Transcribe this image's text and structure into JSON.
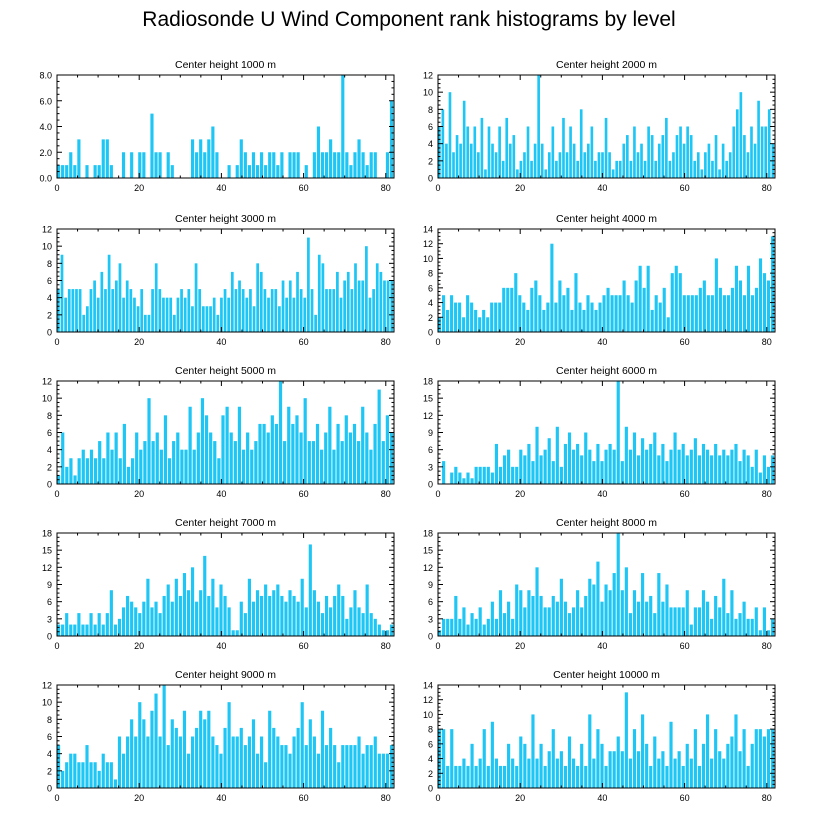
{
  "title": "Radiosonde U Wind Component rank histograms by level",
  "colors": {
    "bar": "#1ec6f5",
    "axis": "#000000",
    "background": "#ffffff"
  },
  "chart_data": [
    {
      "type": "bar",
      "title": "Center height 1000 m",
      "xlim": [
        0,
        82
      ],
      "ylim": [
        0,
        8
      ],
      "xticks": [
        0,
        20,
        40,
        60,
        80
      ],
      "xtick_labels": [
        "0",
        "20",
        "40",
        "60",
        "80"
      ],
      "yticks": [
        0,
        2,
        4,
        6,
        8
      ],
      "ytick_labels": [
        "0.0",
        "2.0",
        "4.0",
        "6.0",
        "8.0"
      ],
      "values": [
        1,
        1,
        1,
        2,
        1,
        3,
        0,
        1,
        0,
        1,
        1,
        3,
        3,
        1,
        0,
        0,
        2,
        0,
        2,
        0,
        2,
        2,
        0,
        5,
        2,
        2,
        0,
        2,
        1,
        0,
        0,
        0,
        0,
        3,
        2,
        3,
        2,
        3,
        4,
        2,
        0,
        0,
        1,
        0,
        1,
        3,
        2,
        1,
        2,
        1,
        2,
        1,
        2,
        2,
        1,
        2,
        0,
        2,
        2,
        2,
        0,
        1,
        0,
        2,
        4,
        2,
        2,
        3,
        2,
        2,
        8,
        2,
        1,
        2,
        3,
        2,
        1,
        2,
        2,
        0,
        0,
        2,
        6
      ]
    },
    {
      "type": "bar",
      "title": "Center height 2000 m",
      "xlim": [
        0,
        82
      ],
      "ylim": [
        0,
        12
      ],
      "xticks": [
        0,
        20,
        40,
        60,
        80
      ],
      "xtick_labels": [
        "0",
        "20",
        "40",
        "60",
        "80"
      ],
      "yticks": [
        0,
        2,
        4,
        6,
        8,
        10,
        12
      ],
      "ytick_labels": [
        "0",
        "2",
        "4",
        "6",
        "8",
        "10",
        "12"
      ],
      "values": [
        6,
        8,
        4,
        10,
        3,
        5,
        4,
        9,
        6,
        4,
        6,
        3,
        7,
        1,
        6,
        4,
        3,
        6,
        2,
        7,
        4,
        5,
        1,
        2,
        3,
        6,
        2,
        4,
        12,
        4,
        1,
        3,
        6,
        2,
        3,
        7,
        3,
        6,
        4,
        2,
        8,
        3,
        4,
        6,
        2,
        3,
        3,
        7,
        3,
        1,
        2,
        2,
        4,
        5,
        2,
        6,
        3,
        4,
        2,
        6,
        5,
        2,
        4,
        5,
        7,
        2,
        3,
        5,
        6,
        4,
        6,
        5,
        2,
        3,
        1,
        3,
        4,
        2,
        5,
        1,
        4,
        2,
        3,
        6,
        8,
        10,
        5,
        3,
        6,
        4,
        9,
        6,
        6,
        8,
        4
      ]
    },
    {
      "type": "bar",
      "title": "Center height 3000 m",
      "xlim": [
        0,
        82
      ],
      "ylim": [
        0,
        12
      ],
      "xticks": [
        0,
        20,
        40,
        60,
        80
      ],
      "xtick_labels": [
        "0",
        "20",
        "40",
        "60",
        "80"
      ],
      "yticks": [
        0,
        2,
        4,
        6,
        8,
        10,
        12
      ],
      "ytick_labels": [
        "0",
        "2",
        "4",
        "6",
        "8",
        "10",
        "12"
      ],
      "values": [
        5,
        9,
        4,
        5,
        5,
        5,
        5,
        2,
        3,
        5,
        6,
        4,
        7,
        5,
        9,
        5,
        6,
        8,
        4,
        6,
        5,
        4,
        3,
        5,
        2,
        2,
        5,
        8,
        5,
        4,
        4,
        4,
        2,
        4,
        5,
        4,
        5,
        3,
        8,
        5,
        3,
        3,
        3,
        4,
        2,
        4,
        5,
        4,
        7,
        5,
        6,
        5,
        4,
        5,
        3,
        8,
        7,
        5,
        4,
        5,
        5,
        3,
        6,
        4,
        6,
        4,
        7,
        5,
        4,
        11,
        5,
        2,
        9,
        8,
        5,
        5,
        5,
        7,
        4,
        6,
        7,
        5,
        8,
        6,
        6,
        10,
        4,
        5,
        8,
        7,
        6,
        6,
        6
      ]
    },
    {
      "type": "bar",
      "title": "Center height 4000 m",
      "xlim": [
        0,
        82
      ],
      "ylim": [
        0,
        14
      ],
      "xticks": [
        0,
        20,
        40,
        60,
        80
      ],
      "xtick_labels": [
        "0",
        "20",
        "40",
        "60",
        "80"
      ],
      "yticks": [
        0,
        2,
        4,
        6,
        8,
        10,
        12,
        14
      ],
      "ytick_labels": [
        "0",
        "2",
        "4",
        "6",
        "8",
        "10",
        "12",
        "14"
      ],
      "values": [
        2,
        5,
        3,
        5,
        4,
        4,
        2,
        5,
        4,
        3,
        2,
        3,
        2,
        4,
        4,
        4,
        6,
        6,
        6,
        8,
        5,
        4,
        3,
        6,
        7,
        5,
        3,
        4,
        12,
        4,
        7,
        5,
        6,
        3,
        8,
        4,
        3,
        5,
        4,
        3,
        4,
        5,
        6,
        5,
        5,
        5,
        7,
        5,
        4,
        7,
        9,
        6,
        9,
        3,
        5,
        4,
        6,
        2,
        8,
        9,
        8,
        5,
        5,
        5,
        5,
        6,
        7,
        5,
        5,
        10,
        6,
        5,
        5,
        6,
        9,
        7,
        5,
        9,
        5,
        6,
        10,
        8,
        7,
        13
      ]
    },
    {
      "type": "bar",
      "title": "Center height 5000 m",
      "xlim": [
        0,
        82
      ],
      "ylim": [
        0,
        12
      ],
      "xticks": [
        0,
        20,
        40,
        60,
        80
      ],
      "xtick_labels": [
        "0",
        "20",
        "40",
        "60",
        "80"
      ],
      "yticks": [
        0,
        2,
        4,
        6,
        8,
        10,
        12
      ],
      "ytick_labels": [
        "0",
        "2",
        "4",
        "6",
        "8",
        "10",
        "12"
      ],
      "values": [
        1,
        6,
        2,
        3,
        1,
        3,
        4,
        3,
        4,
        3,
        5,
        3,
        6,
        4,
        6,
        3,
        7,
        2,
        3,
        6,
        4,
        5,
        10,
        5,
        6,
        4,
        8,
        3,
        5,
        6,
        4,
        4,
        9,
        4,
        6,
        10,
        8,
        6,
        5,
        3,
        8,
        9,
        6,
        5,
        9,
        4,
        6,
        4,
        5,
        7,
        7,
        6,
        8,
        7,
        12,
        5,
        9,
        7,
        8,
        6,
        10,
        5,
        5,
        7,
        4,
        6,
        9,
        4,
        7,
        5,
        8,
        6,
        7,
        5,
        9,
        6,
        4,
        7,
        11,
        5,
        8,
        6
      ]
    },
    {
      "type": "bar",
      "title": "Center height 6000 m",
      "xlim": [
        0,
        82
      ],
      "ylim": [
        0,
        18
      ],
      "xticks": [
        0,
        20,
        40,
        60,
        80
      ],
      "xtick_labels": [
        "0",
        "20",
        "40",
        "60",
        "80"
      ],
      "yticks": [
        0,
        3,
        6,
        9,
        12,
        15,
        18
      ],
      "ytick_labels": [
        "0",
        "3",
        "6",
        "9",
        "12",
        "15",
        "18"
      ],
      "values": [
        0,
        4,
        0,
        2,
        3,
        2,
        1,
        2,
        1,
        3,
        3,
        3,
        3,
        2,
        7,
        3,
        5,
        6,
        3,
        3,
        6,
        5,
        7,
        4,
        10,
        5,
        6,
        8,
        4,
        10,
        3,
        7,
        9,
        6,
        7,
        5,
        9,
        6,
        4,
        7,
        4,
        6,
        7,
        6,
        18,
        4,
        10,
        6,
        9,
        5,
        8,
        6,
        7,
        9,
        5,
        7,
        4,
        6,
        9,
        6,
        7,
        5,
        6,
        8,
        5,
        7,
        6,
        5,
        7,
        5,
        6,
        5,
        6,
        7,
        4,
        6,
        5,
        3,
        6,
        2,
        5,
        3,
        5
      ]
    },
    {
      "type": "bar",
      "title": "Center height 7000 m",
      "xlim": [
        0,
        82
      ],
      "ylim": [
        0,
        18
      ],
      "xticks": [
        0,
        20,
        40,
        60,
        80
      ],
      "xtick_labels": [
        "0",
        "20",
        "40",
        "60",
        "80"
      ],
      "yticks": [
        0,
        3,
        6,
        9,
        12,
        15,
        18
      ],
      "ytick_labels": [
        "0",
        "3",
        "6",
        "9",
        "12",
        "15",
        "18"
      ],
      "values": [
        2,
        2,
        4,
        2,
        2,
        4,
        2,
        2,
        4,
        2,
        4,
        2,
        4,
        8,
        2,
        3,
        5,
        7,
        6,
        5,
        4,
        6,
        10,
        5,
        6,
        4,
        7,
        9,
        6,
        10,
        7,
        11,
        8,
        12,
        6,
        8,
        14,
        7,
        10,
        5,
        9,
        7,
        5,
        1,
        1,
        6,
        4,
        10,
        6,
        8,
        7,
        9,
        7,
        8,
        9,
        7,
        6,
        8,
        7,
        6,
        10,
        5,
        16,
        8,
        6,
        4,
        7,
        5,
        7,
        9,
        7,
        3,
        5,
        8,
        5,
        4,
        9,
        4,
        3,
        2,
        1,
        1,
        2
      ]
    },
    {
      "type": "bar",
      "title": "Center height 8000 m",
      "xlim": [
        0,
        82
      ],
      "ylim": [
        0,
        18
      ],
      "xticks": [
        0,
        20,
        40,
        60,
        80
      ],
      "xtick_labels": [
        "0",
        "20",
        "40",
        "60",
        "80"
      ],
      "yticks": [
        0,
        3,
        6,
        9,
        12,
        15,
        18
      ],
      "ytick_labels": [
        "0",
        "3",
        "6",
        "9",
        "12",
        "15",
        "18"
      ],
      "values": [
        1,
        3,
        3,
        3,
        7,
        3,
        5,
        2,
        4,
        3,
        5,
        2,
        3,
        6,
        3,
        8,
        4,
        6,
        3,
        9,
        8,
        5,
        8,
        7,
        12,
        7,
        5,
        5,
        7,
        6,
        10,
        6,
        4,
        5,
        8,
        5,
        7,
        10,
        9,
        13,
        6,
        9,
        8,
        11,
        18,
        8,
        12,
        4,
        8,
        6,
        11,
        6,
        7,
        4,
        11,
        6,
        9,
        5,
        5,
        5,
        5,
        8,
        2,
        5,
        5,
        8,
        6,
        3,
        7,
        5,
        10,
        4,
        8,
        3,
        4,
        6,
        3,
        3,
        5,
        1,
        5,
        1,
        3
      ]
    },
    {
      "type": "bar",
      "title": "Center height 9000 m",
      "xlim": [
        0,
        82
      ],
      "ylim": [
        0,
        12
      ],
      "xticks": [
        0,
        20,
        40,
        60,
        80
      ],
      "xtick_labels": [
        "0",
        "20",
        "40",
        "60",
        "80"
      ],
      "yticks": [
        0,
        2,
        4,
        6,
        8,
        10,
        12
      ],
      "ytick_labels": [
        "0",
        "2",
        "4",
        "6",
        "8",
        "10",
        "12"
      ],
      "values": [
        5,
        2,
        3,
        4,
        4,
        3,
        3,
        5,
        3,
        3,
        2,
        4,
        3,
        3,
        1,
        6,
        4,
        6,
        8,
        6,
        10,
        8,
        6,
        9,
        11,
        6,
        12,
        5,
        8,
        7,
        6,
        9,
        4,
        6,
        7,
        9,
        8,
        9,
        6,
        5,
        4,
        7,
        10,
        6,
        6,
        7,
        5,
        6,
        8,
        4,
        6,
        3,
        9,
        7,
        6,
        5,
        5,
        4,
        6,
        7,
        10,
        5,
        8,
        6,
        4,
        9,
        5,
        7,
        5,
        3,
        5,
        5,
        5,
        5,
        6,
        4,
        5,
        5,
        6,
        4,
        4,
        4,
        5
      ]
    },
    {
      "type": "bar",
      "title": "Center height 10000 m",
      "xlim": [
        0,
        82
      ],
      "ylim": [
        0,
        14
      ],
      "xticks": [
        0,
        20,
        40,
        60,
        80
      ],
      "xtick_labels": [
        "0",
        "20",
        "40",
        "60",
        "80"
      ],
      "yticks": [
        0,
        2,
        4,
        6,
        8,
        10,
        12,
        14
      ],
      "ytick_labels": [
        "0",
        "2",
        "4",
        "6",
        "8",
        "10",
        "12",
        "14"
      ],
      "values": [
        8,
        8,
        3,
        8,
        3,
        3,
        4,
        3,
        6,
        3,
        4,
        8,
        3,
        9,
        4,
        3,
        3,
        6,
        4,
        3,
        7,
        6,
        4,
        10,
        4,
        6,
        3,
        5,
        8,
        4,
        5,
        3,
        7,
        4,
        3,
        6,
        3,
        10,
        4,
        8,
        6,
        3,
        5,
        5,
        7,
        5,
        13,
        4,
        8,
        5,
        10,
        6,
        3,
        7,
        4,
        5,
        3,
        9,
        4,
        5,
        3,
        6,
        4,
        8,
        3,
        6,
        10,
        4,
        8,
        5,
        4,
        6,
        7,
        10,
        5,
        8,
        3,
        6,
        8,
        8,
        7,
        8,
        8
      ]
    }
  ]
}
